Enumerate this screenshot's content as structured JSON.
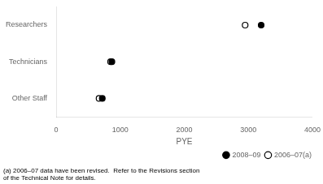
{
  "chart_data": {
    "type": "dot",
    "categories": [
      "Researchers",
      "Technicians",
      "Other Staff"
    ],
    "series": [
      {
        "name": "2008–09",
        "color": "#000000",
        "marker": "circle",
        "values": [
          3200,
          870,
          720
        ]
      },
      {
        "name": "2006–07(a)",
        "color": "#000000",
        "marker": "circle_open",
        "values": [
          2950,
          850,
          670
        ]
      }
    ],
    "xlabel": "PYE",
    "xlim": [
      0,
      4000
    ],
    "xticks": [
      0,
      1000,
      2000,
      3000,
      4000
    ],
    "legend": "lower right",
    "grid": false,
    "annotations": [
      "(a) 2006–07 data have been revised.  Refer to the Revisions section\nof the Technical Note for details."
    ]
  }
}
